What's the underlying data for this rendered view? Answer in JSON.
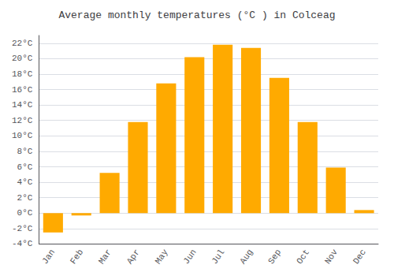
{
  "chart_data": {
    "type": "bar",
    "title": "Average monthly temperatures (°C ) in Colceag",
    "categories": [
      "Jan",
      "Feb",
      "Mar",
      "Apr",
      "May",
      "Jun",
      "Jul",
      "Aug",
      "Sep",
      "Oct",
      "Nov",
      "Dec"
    ],
    "values": [
      -2.5,
      -0.3,
      5.2,
      11.8,
      16.8,
      20.2,
      21.8,
      21.4,
      17.5,
      11.8,
      5.9,
      0.4
    ],
    "color": "#FFAA00",
    "ylim": [
      -4,
      23
    ],
    "yticks": [
      {
        "value": -4,
        "label": "-4°C"
      },
      {
        "value": -2,
        "label": "-2°C"
      },
      {
        "value": 0,
        "label": "0°C"
      },
      {
        "value": 2,
        "label": "2°C"
      },
      {
        "value": 4,
        "label": "4°C"
      },
      {
        "value": 6,
        "label": "6°C"
      },
      {
        "value": 8,
        "label": "8°C"
      },
      {
        "value": 10,
        "label": "10°C"
      },
      {
        "value": 12,
        "label": "12°C"
      },
      {
        "value": 14,
        "label": "14°C"
      },
      {
        "value": 16,
        "label": "16°C"
      },
      {
        "value": 18,
        "label": "18°C"
      },
      {
        "value": 20,
        "label": "20°C"
      },
      {
        "value": 22,
        "label": "22°C"
      }
    ],
    "grid": true
  }
}
